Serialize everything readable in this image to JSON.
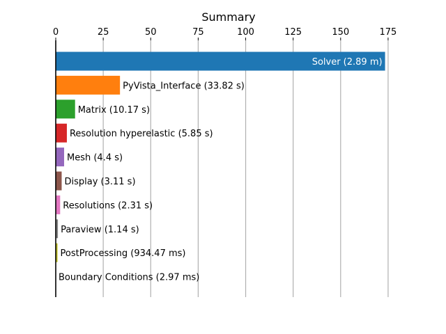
{
  "chart_data": {
    "type": "bar",
    "orientation": "horizontal",
    "title": "Summary",
    "xlabel": "",
    "ylabel": "",
    "xlim": [
      0,
      175
    ],
    "xticks": [
      0,
      25,
      50,
      75,
      100,
      125,
      150,
      175
    ],
    "x_axis_position": "top",
    "grid": "vertical",
    "categories": [
      "Solver",
      "PyVista_Interface",
      "Matrix",
      "Resolution hyperelastic",
      "Mesh",
      "Display",
      "Resolutions",
      "Paraview",
      "PostProcessing",
      "Boundary Conditions"
    ],
    "values": [
      173.4,
      33.82,
      10.17,
      5.85,
      4.4,
      3.11,
      2.31,
      1.14,
      0.93447,
      0.00297
    ],
    "labels": [
      "Solver (2.89 m)",
      "PyVista_Interface (33.82 s)",
      "Matrix (10.17 s)",
      "Resolution hyperelastic (5.85 s)",
      "Mesh (4.4 s)",
      "Display (3.11 s)",
      "Resolutions (2.31 s)",
      "Paraview (1.14 s)",
      "PostProcessing (934.47 ms)",
      "Boundary Conditions (2.97 ms)"
    ],
    "colors": [
      "#1f77b4",
      "#ff7f0e",
      "#2ca02c",
      "#d62728",
      "#9467bd",
      "#8c564b",
      "#e377c2",
      "#7f7f7f",
      "#bcbd22",
      "#17becf"
    ],
    "inside_label_color": "#ffffff",
    "outside_label_color": "#000000"
  }
}
